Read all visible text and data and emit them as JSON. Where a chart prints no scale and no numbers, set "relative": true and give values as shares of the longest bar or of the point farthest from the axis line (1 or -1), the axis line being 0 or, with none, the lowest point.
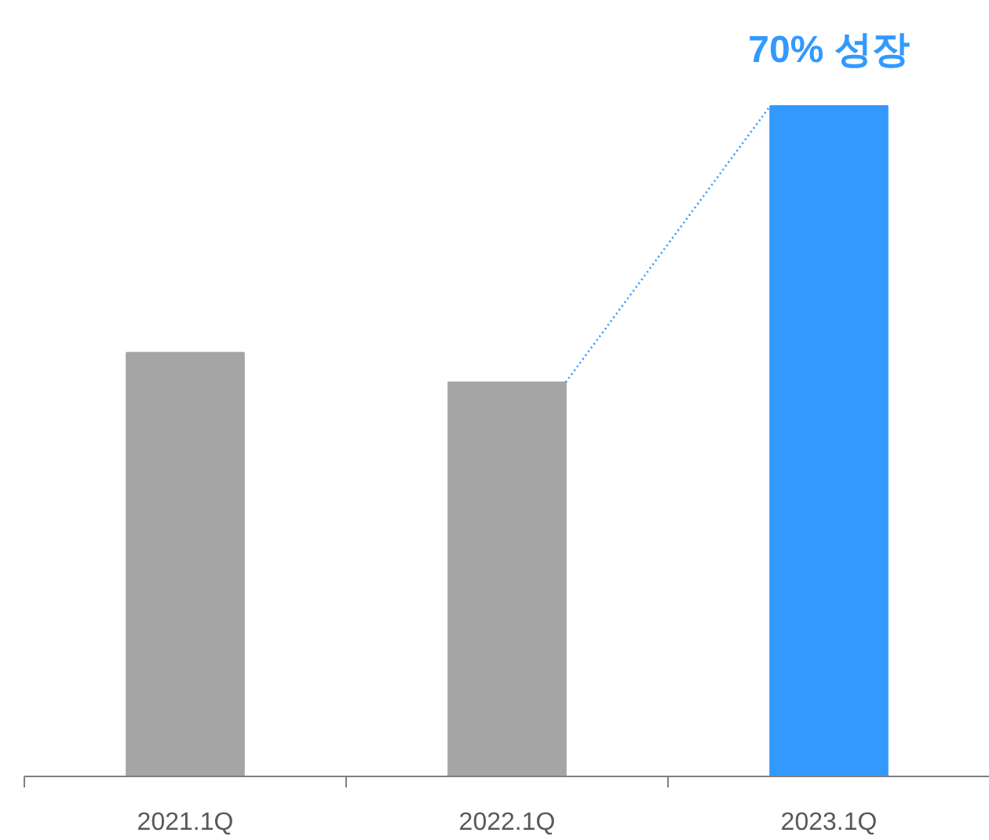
{
  "chart_data": {
    "type": "bar",
    "relative": true,
    "categories": [
      "2021.1Q",
      "2022.1Q",
      "2023.1Q"
    ],
    "colors": [
      "#a5a5a5",
      "#a5a5a5",
      "#3399ff"
    ],
    "values": [
      0.632,
      0.588,
      1
    ],
    "annotations": [
      {
        "text": "70% 성장",
        "x": "2023.1Q",
        "y": 1
      }
    ]
  }
}
